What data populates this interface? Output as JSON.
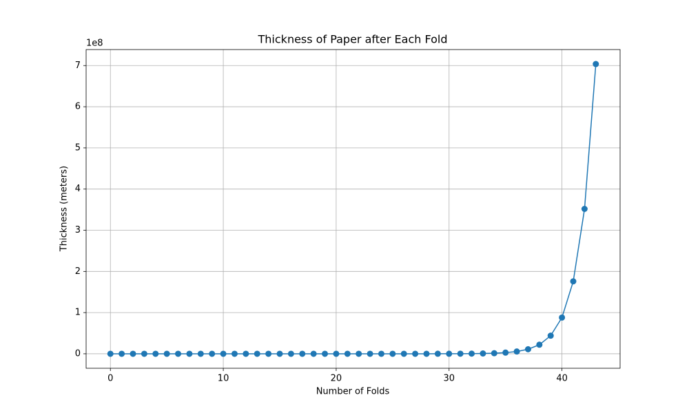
{
  "chart_data": {
    "type": "line",
    "title": "Thickness of Paper after Each Fold",
    "x_label": "Number of Folds",
    "y_label": "Thickness (meters)",
    "y_offset_text": "1e8",
    "x": [
      0,
      1,
      2,
      3,
      4,
      5,
      6,
      7,
      8,
      9,
      10,
      11,
      12,
      13,
      14,
      15,
      16,
      17,
      18,
      19,
      20,
      21,
      22,
      23,
      24,
      25,
      26,
      27,
      28,
      29,
      30,
      31,
      32,
      33,
      34,
      35,
      36,
      37,
      38,
      39,
      40,
      41,
      42,
      43
    ],
    "series": [
      {
        "name": "Thickness",
        "color": "#1f77b4",
        "values": [
          8e-05,
          0.00016,
          0.00032,
          0.00064,
          0.00128,
          0.00256,
          0.00512,
          0.01024,
          0.02048,
          0.04096,
          0.08192,
          0.16384,
          0.32768,
          0.65536,
          1.31072,
          2.62144,
          5.24288,
          10.48576,
          20.97152,
          41.94304,
          83.88608,
          167.77216,
          335.54432,
          671.08864,
          1342.17728,
          2684.35456,
          5368.70912,
          10737.41824,
          21474.83648,
          42949.67296,
          85899.34592,
          171798.69184,
          343597.38368,
          687194.76736,
          1374389.53472,
          2748779.06944,
          5497558.13888,
          10995116.27776,
          21990232.55552,
          43980465.11104,
          87960930.22208,
          175921860.44416,
          351843720.88832,
          703687441.77664
        ]
      }
    ],
    "xlim": [
      -2.15,
      45.15
    ],
    "ylim": [
      -35184372,
      738871813
    ],
    "xticks": [
      0,
      10,
      20,
      30,
      40
    ],
    "yticks": [
      0,
      {
        "value": 100000000,
        "label": "1"
      },
      {
        "value": 200000000,
        "label": "2"
      },
      {
        "value": 300000000,
        "label": "3"
      },
      {
        "value": 400000000,
        "label": "4"
      },
      {
        "value": 500000000,
        "label": "5"
      },
      {
        "value": 600000000,
        "label": "6"
      },
      {
        "value": 700000000,
        "label": "7"
      }
    ],
    "grid": true,
    "markers": true
  }
}
